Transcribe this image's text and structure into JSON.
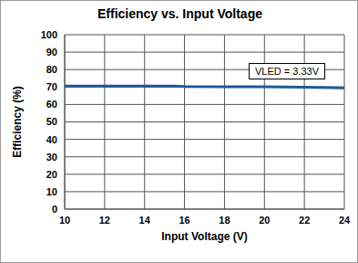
{
  "chart_data": {
    "type": "line",
    "title": "Efficiency vs. Input Voltage",
    "x_label": "Input Voltage (V)",
    "y_label": "Efficiency (%)",
    "annotation": "VLED = 3.33V",
    "x": [
      10,
      12,
      14,
      15.5,
      16,
      18,
      20,
      22,
      24
    ],
    "values": [
      70.6,
      70.6,
      70.6,
      70.6,
      70.3,
      70.2,
      70.1,
      69.9,
      69.5
    ],
    "color": "#1f5a96",
    "xlim": [
      10,
      24
    ],
    "xticks": [
      10,
      12,
      14,
      16,
      18,
      20,
      22,
      24
    ],
    "ylim": [
      0,
      100
    ],
    "yticks": [
      0,
      10,
      20,
      30,
      40,
      50,
      60,
      70,
      80,
      90,
      100
    ],
    "grid": true
  }
}
